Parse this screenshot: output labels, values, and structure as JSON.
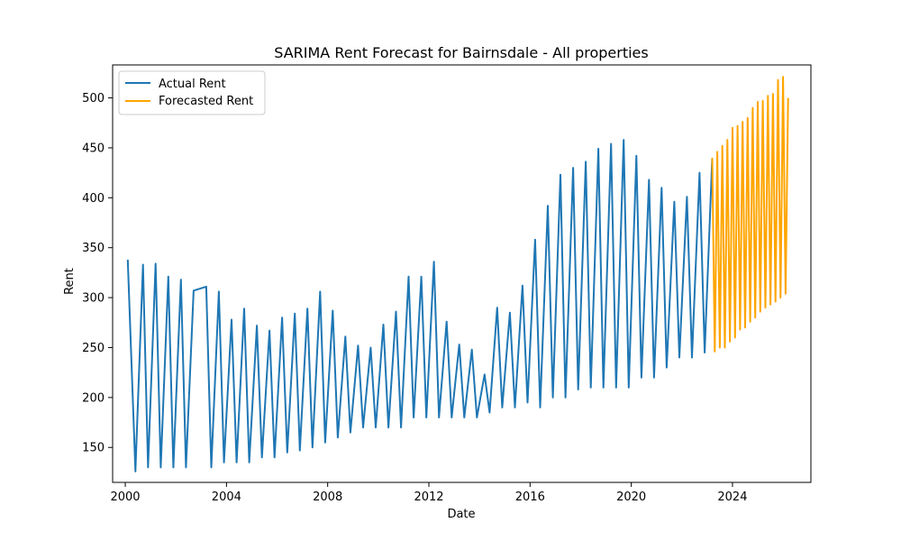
{
  "chart_data": {
    "type": "line",
    "title": "SARIMA Rent Forecast for Bairnsdale - All properties",
    "xlabel": "Date",
    "ylabel": "Rent",
    "xlim": [
      1999.5,
      2027.1
    ],
    "ylim": [
      115,
      533
    ],
    "x_ticks": [
      2000,
      2004,
      2008,
      2012,
      2016,
      2020,
      2024
    ],
    "y_ticks": [
      150,
      200,
      250,
      300,
      350,
      400,
      450,
      500
    ],
    "grid": false,
    "legend_position": "top-left",
    "series": [
      {
        "name": "Actual Rent",
        "color": "#1f77b4",
        "x": [
          2000.1,
          2000.4,
          2000.7,
          2000.9,
          2001.2,
          2001.4,
          2001.7,
          2001.9,
          2002.2,
          2002.4,
          2002.7,
          2003.2,
          2003.4,
          2003.7,
          2003.9,
          2004.2,
          2004.4,
          2004.7,
          2004.9,
          2005.2,
          2005.4,
          2005.7,
          2005.9,
          2006.2,
          2006.4,
          2006.7,
          2006.9,
          2007.2,
          2007.4,
          2007.7,
          2007.9,
          2008.2,
          2008.4,
          2008.7,
          2008.9,
          2009.2,
          2009.4,
          2009.7,
          2009.9,
          2010.2,
          2010.4,
          2010.7,
          2010.9,
          2011.2,
          2011.4,
          2011.7,
          2011.9,
          2012.2,
          2012.4,
          2012.7,
          2012.9,
          2013.2,
          2013.4,
          2013.7,
          2013.9,
          2014.2,
          2014.4,
          2014.7,
          2014.9,
          2015.2,
          2015.4,
          2015.7,
          2015.9,
          2016.2,
          2016.4,
          2016.7,
          2016.9,
          2017.2,
          2017.4,
          2017.7,
          2017.9,
          2018.2,
          2018.4,
          2018.7,
          2018.9,
          2019.2,
          2019.4,
          2019.7,
          2019.9,
          2020.2,
          2020.4,
          2020.7,
          2020.9,
          2021.2,
          2021.4,
          2021.7,
          2021.9,
          2022.2,
          2022.4,
          2022.7,
          2022.9,
          2023.2
        ],
        "y": [
          338,
          126,
          333,
          130,
          334,
          130,
          321,
          130,
          318,
          130,
          307,
          311,
          130,
          306,
          135,
          278,
          135,
          289,
          135,
          272,
          140,
          267,
          140,
          280,
          145,
          284,
          147,
          289,
          150,
          306,
          155,
          287,
          160,
          261,
          165,
          252,
          170,
          250,
          170,
          273,
          170,
          286,
          170,
          321,
          180,
          321,
          180,
          336,
          180,
          276,
          180,
          253,
          180,
          248,
          180,
          223,
          185,
          290,
          190,
          285,
          190,
          312,
          195,
          358,
          190,
          392,
          200,
          423,
          200,
          430,
          208,
          436,
          210,
          449,
          210,
          454,
          210,
          458,
          210,
          442,
          220,
          418,
          220,
          410,
          230,
          396,
          240,
          401,
          240,
          425,
          245,
          440
        ]
      },
      {
        "name": "Forecasted Rent",
        "color": "#ffa500",
        "x": [
          2023.2,
          2023.3,
          2023.4,
          2023.5,
          2023.6,
          2023.7,
          2023.8,
          2023.9,
          2024.0,
          2024.1,
          2024.2,
          2024.3,
          2024.4,
          2024.5,
          2024.6,
          2024.7,
          2024.8,
          2024.9,
          2025.0,
          2025.1,
          2025.2,
          2025.3,
          2025.4,
          2025.5,
          2025.6,
          2025.7,
          2025.8,
          2025.9,
          2026.0,
          2026.1,
          2026.2
        ],
        "y": [
          440,
          246,
          446,
          250,
          452,
          250,
          458,
          256,
          470,
          260,
          472,
          268,
          476,
          270,
          480,
          276,
          490,
          280,
          496,
          286,
          497,
          290,
          502,
          293,
          504,
          296,
          518,
          300,
          521,
          304,
          500
        ]
      }
    ]
  }
}
